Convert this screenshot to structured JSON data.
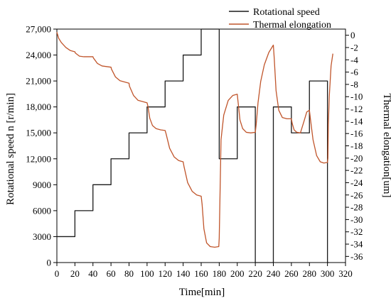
{
  "chart_data": {
    "type": "line",
    "xlabel": "Time[min]",
    "ylabel_left": "Rotational speed n [r/min]",
    "ylabel_right": "Thermal elongation[um]",
    "xlim": [
      0,
      320
    ],
    "ylim_left": [
      0,
      27000
    ],
    "ylim_right": [
      -37,
      1
    ],
    "x_ticks": [
      0,
      20,
      40,
      60,
      80,
      100,
      120,
      140,
      160,
      180,
      200,
      220,
      240,
      260,
      280,
      300,
      320
    ],
    "y_left_ticks": [
      0,
      3000,
      6000,
      9000,
      12000,
      15000,
      18000,
      21000,
      24000,
      27000
    ],
    "y_left_tick_labels": [
      "0",
      "3000",
      "6000",
      "9000",
      "12,000",
      "15,000",
      "18,000",
      "21,000",
      "24,000",
      "27,000"
    ],
    "y_right_ticks": [
      0,
      -2,
      -4,
      -6,
      -8,
      -10,
      -12,
      -14,
      -16,
      -18,
      -20,
      -22,
      -24,
      -26,
      -28,
      -30,
      -32,
      -34,
      -36
    ],
    "legend_position": "top-right",
    "grid": false,
    "series": [
      {
        "name": "Rotational speed",
        "axis": "left",
        "color": "#1a1a1a",
        "step": true,
        "points": [
          [
            0,
            3000
          ],
          [
            20,
            3000
          ],
          [
            20,
            6000
          ],
          [
            40,
            6000
          ],
          [
            40,
            9000
          ],
          [
            60,
            9000
          ],
          [
            60,
            12000
          ],
          [
            80,
            12000
          ],
          [
            80,
            15000
          ],
          [
            100,
            15000
          ],
          [
            100,
            18000
          ],
          [
            120,
            18000
          ],
          [
            120,
            21000
          ],
          [
            140,
            21000
          ],
          [
            140,
            24000
          ],
          [
            160,
            24000
          ],
          [
            160,
            27000
          ],
          [
            180,
            27000
          ],
          [
            180,
            12000
          ],
          [
            200,
            12000
          ],
          [
            200,
            18000
          ],
          [
            220,
            18000
          ],
          [
            220,
            0
          ],
          [
            240,
            0
          ],
          [
            240,
            18000
          ],
          [
            260,
            18000
          ],
          [
            260,
            15000
          ],
          [
            280,
            15000
          ],
          [
            280,
            21000
          ],
          [
            300,
            21000
          ],
          [
            300,
            0
          ],
          [
            302,
            0
          ]
        ]
      },
      {
        "name": "Thermal elongation",
        "axis": "right",
        "color": "#c0552b",
        "points": [
          [
            0,
            0.5
          ],
          [
            2,
            -0.5
          ],
          [
            5,
            -1.2
          ],
          [
            10,
            -2.0
          ],
          [
            15,
            -2.5
          ],
          [
            20,
            -2.7
          ],
          [
            20.5,
            -2.9
          ],
          [
            25,
            -3.4
          ],
          [
            30,
            -3.5
          ],
          [
            40,
            -3.5
          ],
          [
            40.5,
            -3.7
          ],
          [
            45,
            -4.6
          ],
          [
            50,
            -5.0
          ],
          [
            60,
            -5.2
          ],
          [
            60.5,
            -5.5
          ],
          [
            65,
            -6.8
          ],
          [
            70,
            -7.4
          ],
          [
            80,
            -7.8
          ],
          [
            80.5,
            -8.3
          ],
          [
            85,
            -9.8
          ],
          [
            90,
            -10.6
          ],
          [
            100,
            -11.0
          ],
          [
            101,
            -11.6
          ],
          [
            103,
            -13.5
          ],
          [
            106,
            -14.7
          ],
          [
            110,
            -15.2
          ],
          [
            115,
            -15.4
          ],
          [
            120,
            -15.5
          ],
          [
            121,
            -16.0
          ],
          [
            125,
            -18.4
          ],
          [
            130,
            -19.8
          ],
          [
            135,
            -20.4
          ],
          [
            140,
            -20.6
          ],
          [
            141,
            -21.4
          ],
          [
            145,
            -24.0
          ],
          [
            150,
            -25.4
          ],
          [
            155,
            -26.0
          ],
          [
            160,
            -26.2
          ],
          [
            161,
            -27.5
          ],
          [
            163,
            -31.5
          ],
          [
            166,
            -33.8
          ],
          [
            170,
            -34.4
          ],
          [
            175,
            -34.5
          ],
          [
            179.5,
            -34.4
          ],
          [
            180,
            -33.0
          ],
          [
            182,
            -17.0
          ],
          [
            185,
            -13.0
          ],
          [
            190,
            -10.6
          ],
          [
            195,
            -9.8
          ],
          [
            200,
            -9.6
          ],
          [
            201,
            -11.0
          ],
          [
            203,
            -13.8
          ],
          [
            206,
            -15.2
          ],
          [
            210,
            -15.8
          ],
          [
            215,
            -15.9
          ],
          [
            220,
            -15.8
          ],
          [
            221,
            -14.5
          ],
          [
            223,
            -11.0
          ],
          [
            226,
            -7.5
          ],
          [
            230,
            -4.8
          ],
          [
            235,
            -2.8
          ],
          [
            240,
            -1.6
          ],
          [
            241,
            -3.8
          ],
          [
            243,
            -9.0
          ],
          [
            246,
            -12.2
          ],
          [
            250,
            -13.4
          ],
          [
            255,
            -13.6
          ],
          [
            260,
            -13.6
          ],
          [
            261,
            -14.4
          ],
          [
            263,
            -15.4
          ],
          [
            266,
            -15.8
          ],
          [
            270,
            -15.9
          ],
          [
            274,
            -14.0
          ],
          [
            277,
            -12.5
          ],
          [
            280,
            -12.2
          ],
          [
            281,
            -13.5
          ],
          [
            284,
            -17.0
          ],
          [
            288,
            -19.6
          ],
          [
            292,
            -20.6
          ],
          [
            296,
            -20.8
          ],
          [
            300,
            -20.7
          ],
          [
            300.5,
            -20.0
          ],
          [
            301,
            -14.5
          ],
          [
            302,
            -10.0
          ],
          [
            304,
            -5.0
          ],
          [
            306,
            -3.0
          ]
        ]
      }
    ]
  }
}
